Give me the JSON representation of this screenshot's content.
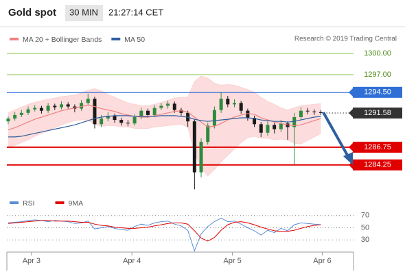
{
  "header": {
    "title": "Gold spot",
    "timeframe": "30 MIN",
    "time": "21:27:14 CET"
  },
  "source": "Research © 2019 Trading Central",
  "chart_data": [
    {
      "type": "candlestick",
      "ylim": [
        1280.45,
        1301.74
      ],
      "up_color": "#2e8b3e",
      "down_color": "#1a1a1a",
      "candles": {
        "open": [
          1290.4,
          1290.8,
          1291.3,
          1291.6,
          1292.1,
          1292.3,
          1291.9,
          1292.6,
          1292.4,
          1292.8,
          1292.5,
          1292.2,
          1293.0,
          1293.6,
          1290.0,
          1290.8,
          1291.2,
          1290.6,
          1290.2,
          1290.1,
          1291.0,
          1291.9,
          1291.3,
          1292.3,
          1292.6,
          1292.9,
          1292.0,
          1291.6,
          1290.4,
          1283.2,
          1287.5,
          1289.8,
          1292.0,
          1293.6,
          1292.8,
          1293.0,
          1291.9,
          1290.9,
          1290.0,
          1288.8,
          1289.9,
          1289.3,
          1290.1,
          1289.6,
          1291.0,
          1291.9,
          1291.8,
          1291.7
        ],
        "high": [
          1291.1,
          1291.7,
          1292.0,
          1292.5,
          1292.7,
          1292.6,
          1293.0,
          1292.9,
          1293.2,
          1293.1,
          1292.8,
          1293.4,
          1294.3,
          1293.9,
          1291.3,
          1291.7,
          1291.5,
          1290.9,
          1290.6,
          1291.4,
          1292.3,
          1292.2,
          1292.7,
          1293.0,
          1293.3,
          1293.2,
          1292.3,
          1291.9,
          1290.7,
          1288.0,
          1290.2,
          1292.5,
          1294.5,
          1294.0,
          1293.5,
          1293.3,
          1292.2,
          1291.2,
          1290.3,
          1290.4,
          1290.2,
          1290.6,
          1290.4,
          1291.6,
          1292.4,
          1292.3,
          1292.1,
          1292.0
        ],
        "low": [
          1290.0,
          1290.5,
          1291.0,
          1291.3,
          1291.8,
          1291.5,
          1291.6,
          1292.0,
          1292.1,
          1292.2,
          1291.7,
          1291.9,
          1292.7,
          1289.4,
          1289.6,
          1290.4,
          1290.2,
          1289.8,
          1289.7,
          1289.8,
          1290.7,
          1290.9,
          1291.0,
          1292.0,
          1292.2,
          1291.6,
          1291.2,
          1289.6,
          1280.8,
          1282.5,
          1287.1,
          1289.4,
          1291.6,
          1292.4,
          1292.4,
          1291.5,
          1290.5,
          1289.6,
          1288.2,
          1288.4,
          1288.7,
          1288.9,
          1287.8,
          1284.3,
          1290.6,
          1291.4,
          1291.3,
          1291.3
        ],
        "close": [
          1290.8,
          1291.3,
          1291.6,
          1292.1,
          1292.3,
          1291.9,
          1292.6,
          1292.4,
          1292.8,
          1292.5,
          1292.2,
          1293.0,
          1293.6,
          1290.0,
          1290.8,
          1291.2,
          1290.6,
          1290.2,
          1290.1,
          1291.0,
          1291.9,
          1291.3,
          1292.3,
          1292.6,
          1292.9,
          1292.0,
          1291.6,
          1290.4,
          1283.2,
          1287.5,
          1289.8,
          1292.0,
          1293.6,
          1292.8,
          1293.0,
          1291.9,
          1290.9,
          1290.0,
          1288.8,
          1289.9,
          1289.3,
          1290.1,
          1289.6,
          1291.0,
          1291.9,
          1291.8,
          1291.7,
          1291.58
        ]
      },
      "series": [
        {
          "name": "MA 20 + Bollinger Bands",
          "color": "#f08080",
          "band_color": "#fbd3d3",
          "values": [
            1289.2,
            1289.5,
            1289.9,
            1290.3,
            1290.7,
            1291.0,
            1291.3,
            1291.6,
            1291.9,
            1292.1,
            1292.3,
            1292.5,
            1292.7,
            1292.5,
            1292.2,
            1292.0,
            1291.8,
            1291.5,
            1291.3,
            1291.1,
            1291.0,
            1291.0,
            1291.2,
            1291.4,
            1291.6,
            1291.8,
            1291.9,
            1291.7,
            1291.0,
            1290.3,
            1289.6,
            1289.7,
            1290.1,
            1290.6,
            1291.0,
            1291.3,
            1291.5,
            1291.4,
            1290.9,
            1290.6,
            1290.3,
            1290.1,
            1289.9,
            1289.8,
            1289.9,
            1290.2,
            1290.5,
            1290.8
          ],
          "upper": [
            1291.6,
            1292.0,
            1292.4,
            1292.8,
            1293.1,
            1293.3,
            1293.5,
            1293.7,
            1293.9,
            1294.0,
            1294.1,
            1294.4,
            1294.8,
            1295.0,
            1294.7,
            1294.2,
            1293.8,
            1293.4,
            1293.0,
            1292.8,
            1292.6,
            1292.6,
            1292.8,
            1293.1,
            1293.4,
            1293.7,
            1293.8,
            1293.8,
            1296.0,
            1296.8,
            1296.5,
            1295.8,
            1295.5,
            1295.6,
            1295.5,
            1295.2,
            1294.9,
            1294.5,
            1293.8,
            1293.2,
            1292.8,
            1292.3,
            1292.0,
            1292.3,
            1292.6,
            1292.7,
            1292.8,
            1292.9
          ],
          "lower": [
            1286.8,
            1287.0,
            1287.4,
            1287.8,
            1288.3,
            1288.7,
            1289.1,
            1289.5,
            1289.9,
            1290.2,
            1290.5,
            1290.6,
            1290.6,
            1290.0,
            1289.7,
            1289.8,
            1289.8,
            1289.6,
            1289.6,
            1289.4,
            1289.4,
            1289.4,
            1289.6,
            1289.7,
            1289.8,
            1289.9,
            1290.0,
            1289.6,
            1286.0,
            1283.8,
            1282.7,
            1283.6,
            1284.7,
            1285.6,
            1286.5,
            1287.4,
            1288.1,
            1288.3,
            1288.0,
            1288.0,
            1287.8,
            1287.9,
            1287.8,
            1287.3,
            1287.2,
            1287.7,
            1288.2,
            1288.7
          ]
        },
        {
          "name": "MA 50",
          "color": "#2f5f9e",
          "values": [
            1288.2,
            1288.2,
            1288.3,
            1288.5,
            1288.7,
            1288.9,
            1289.1,
            1289.3,
            1289.5,
            1289.7,
            1289.9,
            1290.2,
            1290.5,
            1290.8,
            1291.0,
            1291.1,
            1291.2,
            1291.2,
            1291.2,
            1291.1,
            1291.1,
            1291.1,
            1291.1,
            1291.2,
            1291.2,
            1291.2,
            1291.1,
            1291.0,
            1290.7,
            1290.5,
            1290.4,
            1290.5,
            1290.6,
            1290.7,
            1290.8,
            1290.9,
            1290.9,
            1290.8,
            1290.6,
            1290.5,
            1290.4,
            1290.4,
            1290.3,
            1290.4,
            1290.6,
            1290.8,
            1291.0,
            1291.1
          ]
        }
      ],
      "levels": [
        {
          "value": 1300,
          "label": "1300.00",
          "color": "#8bc34a",
          "text_color": "#4a8a10",
          "style": "text",
          "line": "solid"
        },
        {
          "value": 1297,
          "label": "1297.00",
          "color": "#8bc34a",
          "text_color": "#4a8a10",
          "style": "text",
          "line": "solid"
        },
        {
          "value": 1294.5,
          "label": "1294.50",
          "color": "#2f6fd6",
          "text_color": "#ffffff",
          "style": "box",
          "line": "solid"
        },
        {
          "value": 1291.58,
          "label": "1291.58",
          "color": "#333333",
          "text_color": "#ffffff",
          "style": "box",
          "line": "dotted"
        },
        {
          "value": 1286.75,
          "label": "1286.75",
          "color": "#e00000",
          "text_color": "#ffffff",
          "style": "box",
          "line": "solid"
        },
        {
          "value": 1284.25,
          "label": "1284.25",
          "color": "#e00000",
          "text_color": "#ffffff",
          "style": "box",
          "line": "solid"
        }
      ]
    },
    {
      "type": "line",
      "ylim": [
        10,
        81
      ],
      "yticks": [
        70,
        50,
        30
      ],
      "grid": true,
      "xlim": [
        -0.2,
        51.9
      ],
      "xticks": [
        {
          "value": 3.5,
          "label": "Apr 3"
        },
        {
          "value": 18.6,
          "label": "Apr 4"
        },
        {
          "value": 33.7,
          "label": "Apr 5"
        },
        {
          "value": 47.2,
          "label": "Apr 6"
        }
      ],
      "series": [
        {
          "name": "RSI",
          "color": "#5b8dd6",
          "values": [
            58,
            59,
            60,
            62,
            63,
            62,
            60,
            62,
            61,
            60,
            57,
            58,
            61,
            48,
            50,
            52,
            49,
            47,
            46,
            52,
            56,
            54,
            58,
            60,
            61,
            56,
            53,
            46,
            12,
            40,
            52,
            60,
            66,
            60,
            61,
            56,
            50,
            45,
            38,
            46,
            42,
            49,
            45,
            55,
            58,
            57,
            56,
            55
          ]
        },
        {
          "name": "9MA",
          "color": "#e00000",
          "values": [
            57,
            58,
            59,
            60,
            61,
            62,
            62,
            61,
            61,
            61,
            60,
            59,
            59,
            56,
            54,
            53,
            51,
            50,
            49,
            49,
            50,
            51,
            53,
            55,
            57,
            58,
            58,
            56,
            45,
            33,
            28,
            34,
            46,
            55,
            59,
            60,
            58,
            55,
            51,
            48,
            45,
            44,
            44,
            46,
            49,
            52,
            54,
            55
          ]
        }
      ]
    }
  ]
}
